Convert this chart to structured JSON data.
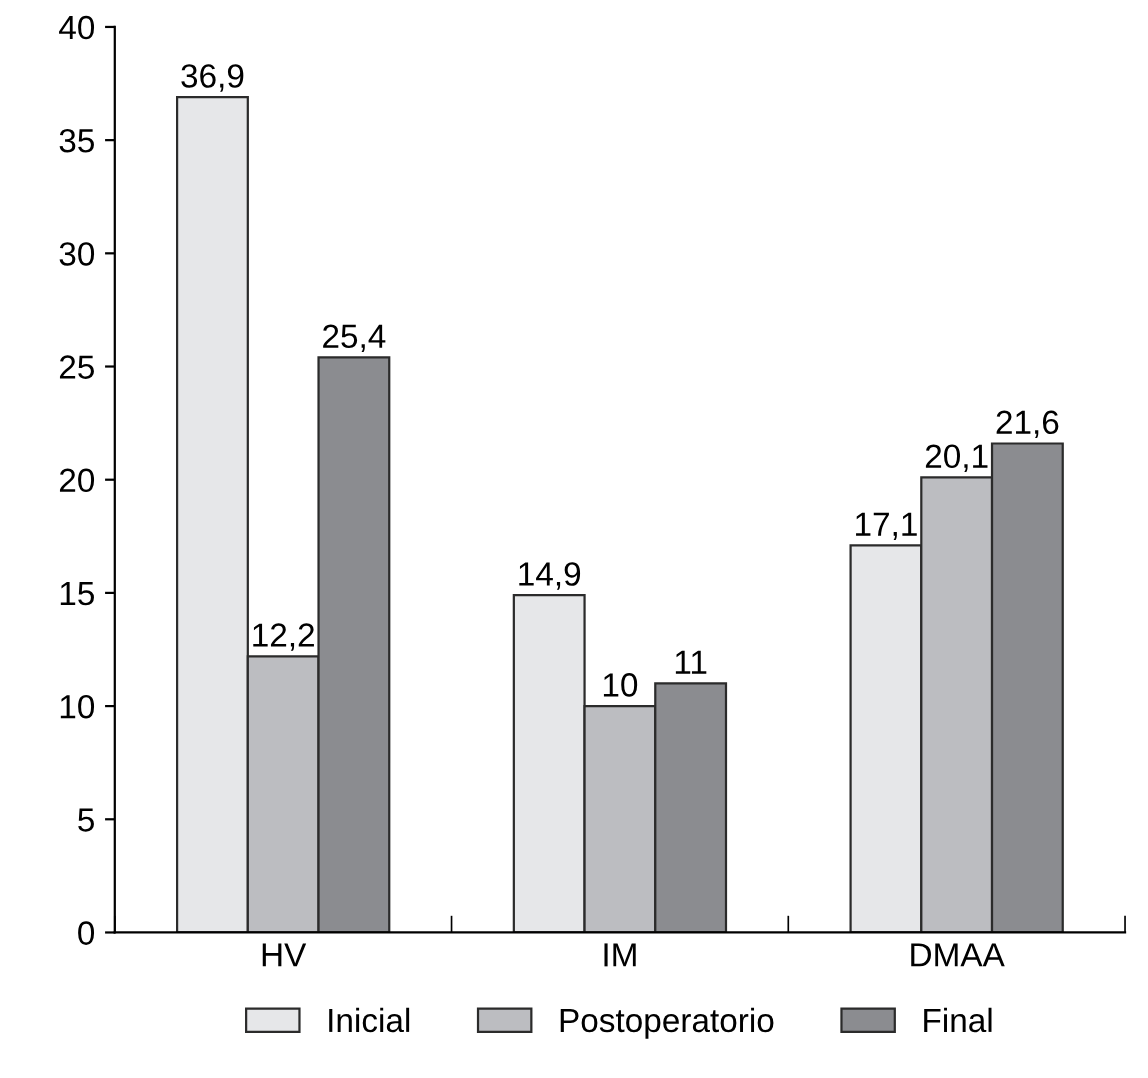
{
  "chart_data": {
    "type": "bar",
    "categories": [
      "HV",
      "IM",
      "DMAA"
    ],
    "series": [
      {
        "name": "Inicial",
        "color": "#e6e7e9",
        "values": [
          36.9,
          14.9,
          17.1
        ],
        "value_labels": [
          "36,9",
          "14,9",
          "17,1"
        ]
      },
      {
        "name": "Postoperatorio",
        "color": "#bcbdc1",
        "values": [
          12.2,
          10,
          20.1
        ],
        "value_labels": [
          "12,2",
          "10",
          "20,1"
        ]
      },
      {
        "name": "Final",
        "color": "#8b8c90",
        "values": [
          25.4,
          11,
          21.6
        ],
        "value_labels": [
          "25,4",
          "11",
          "21,6"
        ]
      }
    ],
    "ylim": [
      0,
      40
    ],
    "yticks": [
      0,
      5,
      10,
      15,
      20,
      25,
      30,
      35,
      40
    ],
    "grid": false,
    "legend": "bottom"
  }
}
